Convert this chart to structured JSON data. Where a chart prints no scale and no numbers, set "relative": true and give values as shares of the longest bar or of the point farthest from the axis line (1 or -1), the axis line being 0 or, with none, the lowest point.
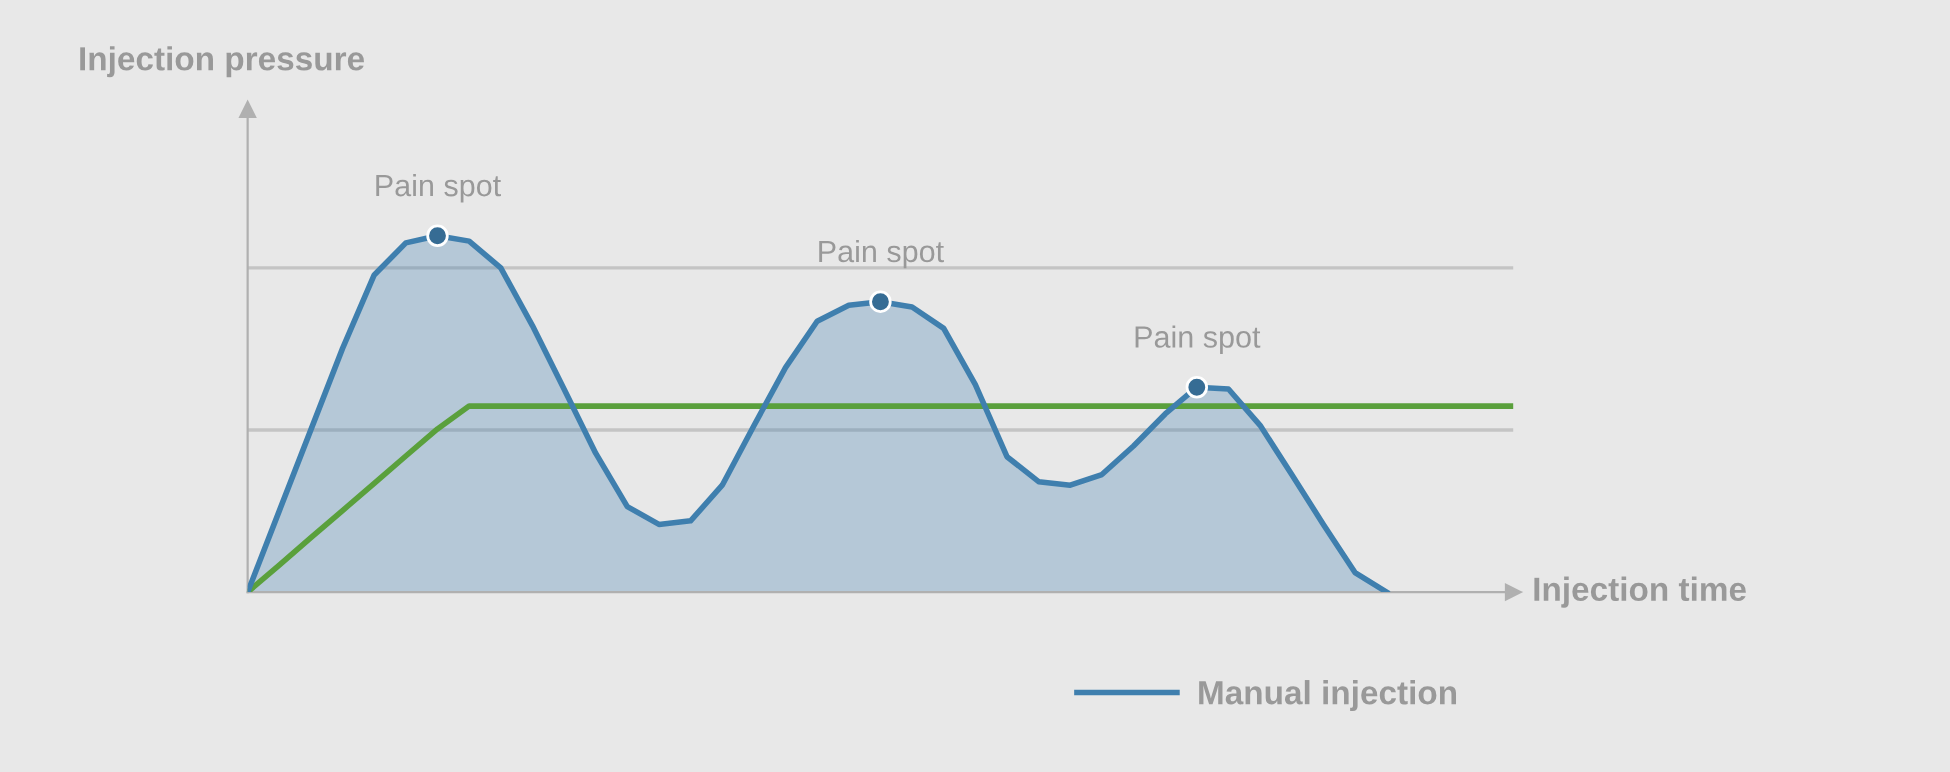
{
  "chart_data": {
    "type": "line",
    "relative": true,
    "xlabel": "Injection time",
    "ylabel": "Injection pressure",
    "categories": [
      null,
      null,
      null,
      null,
      null,
      null,
      null,
      null,
      null,
      null,
      null,
      null,
      null,
      null,
      null,
      null,
      null,
      null,
      null,
      null,
      null,
      null,
      null,
      null,
      null,
      null,
      null,
      null,
      null,
      null,
      null,
      null,
      null,
      null,
      null,
      null,
      null,
      null,
      null,
      null,
      null
    ],
    "tick_labels": false,
    "legend": "bottom",
    "series": [
      {
        "color": "#5aa03c",
        "values": [
          0,
          0.076,
          0.153,
          0.229,
          0.305,
          0.382,
          0.458,
          0.522,
          0.522,
          0.522,
          0.522,
          0.522,
          0.522,
          0.522,
          0.522,
          0.522,
          0.522,
          0.522,
          0.522,
          0.522,
          0.522,
          0.522,
          0.522,
          0.522,
          0.522,
          0.522,
          0.522,
          0.522,
          0.522,
          0.522,
          0.522,
          0.522,
          0.522,
          0.522,
          0.522,
          0.522,
          0.522,
          0.522,
          0.522,
          0.522,
          0.522
        ]
      },
      {
        "type": "area",
        "name": "Manual injection",
        "color": "#3f7fae",
        "values": [
          0,
          0.228,
          0.456,
          0.684,
          0.89,
          0.98,
          1,
          0.985,
          0.91,
          0.748,
          0.57,
          0.39,
          0.24,
          0.19,
          0.2,
          0.3,
          0.467,
          0.63,
          0.76,
          0.805,
          0.815,
          0.8,
          0.74,
          0.582,
          0.38,
          0.31,
          0.3,
          0.33,
          0.41,
          0.5,
          0.575,
          0.57,
          0.468,
          0.33,
          0.19,
          0.055,
          0,
          null,
          null,
          null,
          null
        ]
      }
    ],
    "ref_lines": [
      {
        "axis": "y",
        "value": 0.455,
        "color": "#c4c4c4"
      },
      {
        "axis": "y",
        "value": 0.91,
        "color": "#c4c4c4"
      }
    ],
    "annotations": [
      {
        "text": "Pain spot",
        "y": 1
      },
      {
        "text": "Pain spot",
        "y": 0.815
      },
      {
        "text": "Pain spot",
        "y": 0.575
      }
    ]
  }
}
